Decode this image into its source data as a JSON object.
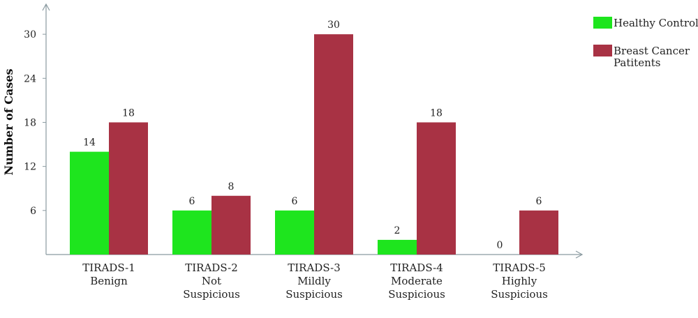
{
  "chart_data": {
    "type": "bar",
    "ylabel": "Number of Cases",
    "ylim": [
      0,
      34
    ],
    "yticks": [
      6,
      12,
      18,
      24,
      30
    ],
    "categories": [
      [
        "TIRADS-1",
        "Benign"
      ],
      [
        "TIRADS-2",
        "Not",
        "Suspicious"
      ],
      [
        "TIRADS-3",
        "Mildly",
        "Suspicious"
      ],
      [
        "TIRADS-4",
        "Moderate",
        "Suspicious"
      ],
      [
        "TIRADS-5",
        "Highly",
        "Suspicious"
      ]
    ],
    "series": [
      {
        "name": "Healthy Control",
        "color": "#1ee51e",
        "values": [
          14,
          6,
          6,
          2,
          0
        ]
      },
      {
        "name": "Breast Cancer Patitents",
        "color": "#a83244",
        "values": [
          18,
          8,
          30,
          18,
          6
        ]
      }
    ],
    "legend_position": "top-right",
    "grid": false
  }
}
